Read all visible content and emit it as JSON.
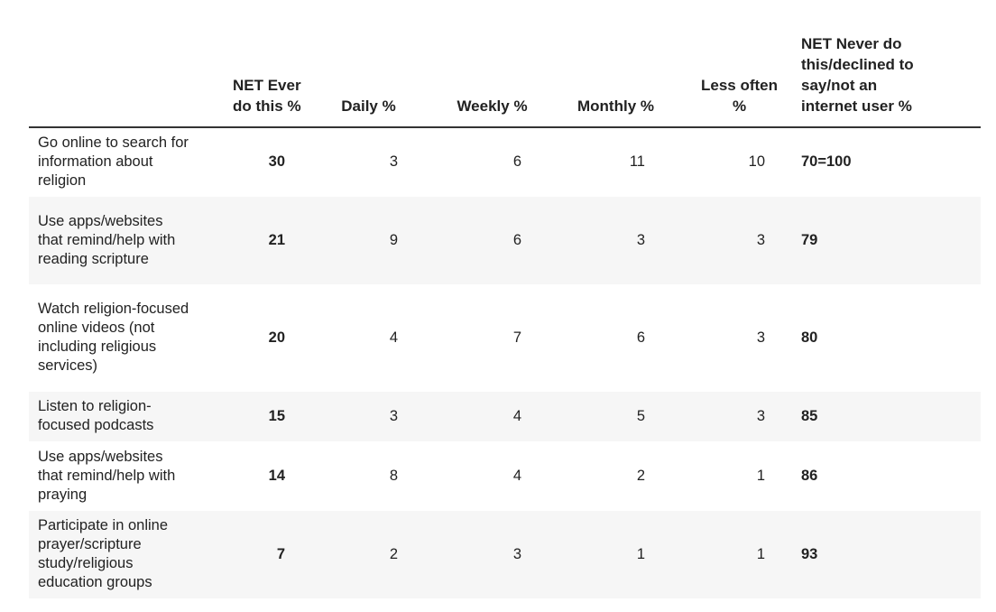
{
  "chart_data": {
    "type": "table",
    "columns": [
      "",
      "NET Ever do this %",
      "Daily %",
      "Weekly %",
      "Monthly %",
      "Less often %",
      "NET Never do this/declined to say/not an internet user %"
    ],
    "rows": [
      {
        "label": "Go online to search for information about religion",
        "net_ever": "30",
        "daily": "3",
        "weekly": "6",
        "monthly": "11",
        "less_often": "10",
        "net_never": "70=100"
      },
      {
        "label": "Use apps/websites that remind/help with reading scripture",
        "net_ever": "21",
        "daily": "9",
        "weekly": "6",
        "monthly": "3",
        "less_often": "3",
        "net_never": "79"
      },
      {
        "label": "Watch religion-focused online videos (not including religious services)",
        "net_ever": "20",
        "daily": "4",
        "weekly": "7",
        "monthly": "6",
        "less_often": "3",
        "net_never": "80"
      },
      {
        "label": "Listen to religion-focused podcasts",
        "net_ever": "15",
        "daily": "3",
        "weekly": "4",
        "monthly": "5",
        "less_often": "3",
        "net_never": "85"
      },
      {
        "label": "Use apps/websites that remind/help with praying",
        "net_ever": "14",
        "daily": "8",
        "weekly": "4",
        "monthly": "2",
        "less_often": "1",
        "net_never": "86"
      },
      {
        "label": "Participate in online prayer/scripture study/religious education groups",
        "net_ever": "7",
        "daily": "2",
        "weekly": "3",
        "monthly": "1",
        "less_often": "1",
        "net_never": "93"
      }
    ]
  },
  "colors": {
    "text": "#222222",
    "row_shade": "#f6f6f6",
    "header_rule": "#333333"
  }
}
